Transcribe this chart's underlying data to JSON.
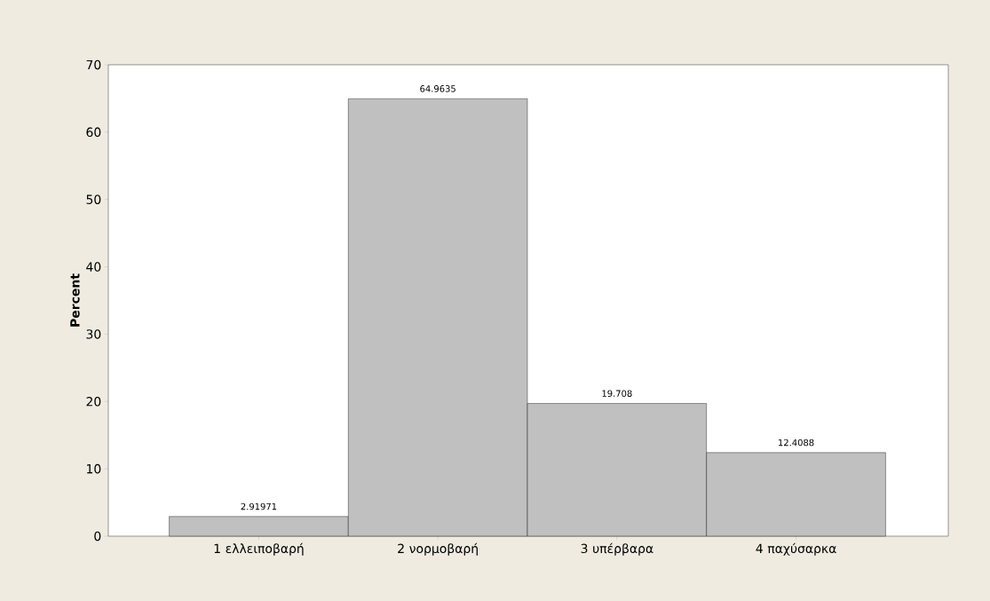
{
  "chart_data": {
    "type": "bar",
    "ylabel": "Percent",
    "categories": [
      "1 ελλειποβαρή",
      "2 νορμοβαρή",
      "3 υπέρβαρα",
      "4 παχύσαρκα"
    ],
    "values": [
      2.91971,
      64.9635,
      19.708,
      12.4088
    ],
    "color": "#c0c0c0",
    "data_labels": true,
    "ylim": [
      0,
      70
    ],
    "yticks": [
      0,
      10,
      20,
      30,
      40,
      50,
      60,
      70
    ]
  }
}
